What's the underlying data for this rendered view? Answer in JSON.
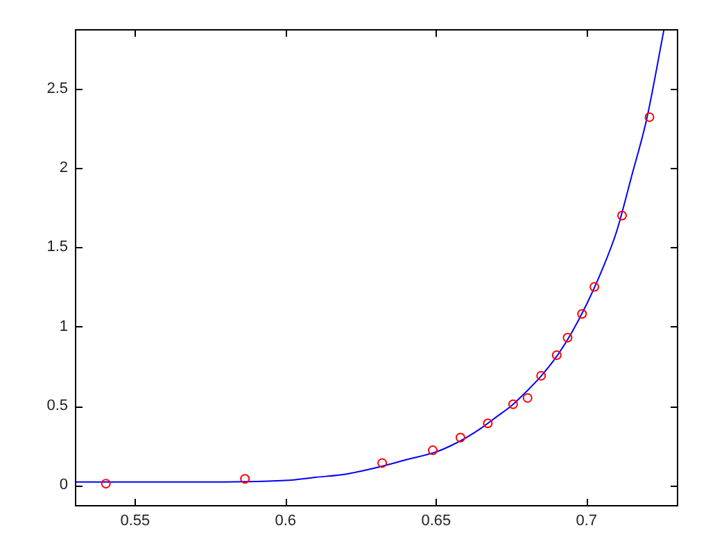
{
  "chart_data": {
    "type": "scatter",
    "xlim": [
      0.53,
      0.73
    ],
    "ylim": [
      -0.125,
      2.875
    ],
    "xticks": [
      0.55,
      0.6,
      0.65,
      0.7
    ],
    "yticks": [
      0,
      0.5,
      1,
      1.5,
      2,
      2.5
    ],
    "grid": false,
    "legend": false,
    "series": [
      {
        "type": "line",
        "color": "#0000ff",
        "marker": "none",
        "x": [
          0.53,
          0.57,
          0.6,
          0.61,
          0.62,
          0.63,
          0.64,
          0.65,
          0.655,
          0.66,
          0.665,
          0.67,
          0.675,
          0.68,
          0.685,
          0.69,
          0.695,
          0.7,
          0.705,
          0.71,
          0.715,
          0.72,
          0.7257
        ],
        "values": [
          0.02,
          0.02,
          0.03,
          0.05,
          0.07,
          0.11,
          0.16,
          0.21,
          0.25,
          0.3,
          0.36,
          0.43,
          0.5,
          0.59,
          0.69,
          0.81,
          0.96,
          1.14,
          1.35,
          1.6,
          1.95,
          2.31,
          2.87
        ]
      },
      {
        "color": "#ff0000",
        "marker": "circle",
        "x": [
          0.5403,
          0.5865,
          0.6321,
          0.6489,
          0.6581,
          0.6672,
          0.6756,
          0.6804,
          0.6849,
          0.6901,
          0.6937,
          0.6985,
          0.7026,
          0.7118,
          0.7209
        ],
        "values": [
          0.01,
          0.04,
          0.14,
          0.22,
          0.3,
          0.39,
          0.51,
          0.55,
          0.69,
          0.82,
          0.93,
          1.08,
          1.25,
          1.7,
          2.32
        ]
      }
    ]
  }
}
